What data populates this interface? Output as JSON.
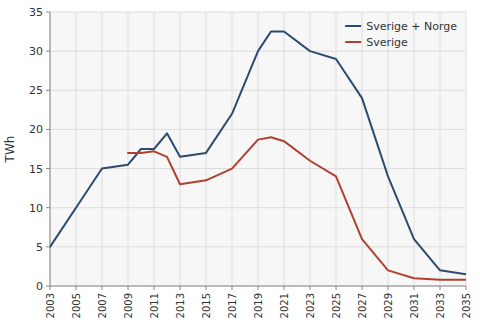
{
  "chart_data": {
    "type": "line",
    "ylabel": "TWh",
    "series": [
      {
        "name": "Sverige + Norge",
        "color": "#2c4b6e",
        "x": [
          2003,
          2005,
          2007,
          2009,
          2010,
          2011,
          2012,
          2013,
          2015,
          2017,
          2019,
          2020,
          2021,
          2023,
          2025,
          2027,
          2029,
          2031,
          2033,
          2035
        ],
        "values": [
          5,
          10,
          15,
          15.5,
          17.5,
          17.5,
          19.5,
          16.5,
          17,
          22,
          30,
          32.5,
          32.5,
          30,
          29,
          24,
          14,
          6,
          2,
          1.5
        ]
      },
      {
        "name": "Sverige",
        "color": "#b04030",
        "x": [
          2009,
          2010,
          2011,
          2012,
          2013,
          2015,
          2017,
          2019,
          2020,
          2021,
          2023,
          2025,
          2027,
          2029,
          2031,
          2033,
          2035
        ],
        "values": [
          17,
          17,
          17.2,
          16.5,
          13,
          13.5,
          15,
          18.7,
          19,
          18.5,
          16,
          14,
          6,
          2,
          1,
          0.8,
          0.8
        ]
      }
    ],
    "xlim": [
      2003,
      2035
    ],
    "ylim": [
      0,
      35
    ],
    "xticks": [
      2003,
      2005,
      2007,
      2009,
      2011,
      2013,
      2015,
      2017,
      2019,
      2021,
      2023,
      2025,
      2027,
      2029,
      2031,
      2033,
      2035
    ],
    "yticks": [
      0,
      5,
      10,
      15,
      20,
      25,
      30,
      35
    ],
    "grid": true,
    "legend": "upper right"
  }
}
